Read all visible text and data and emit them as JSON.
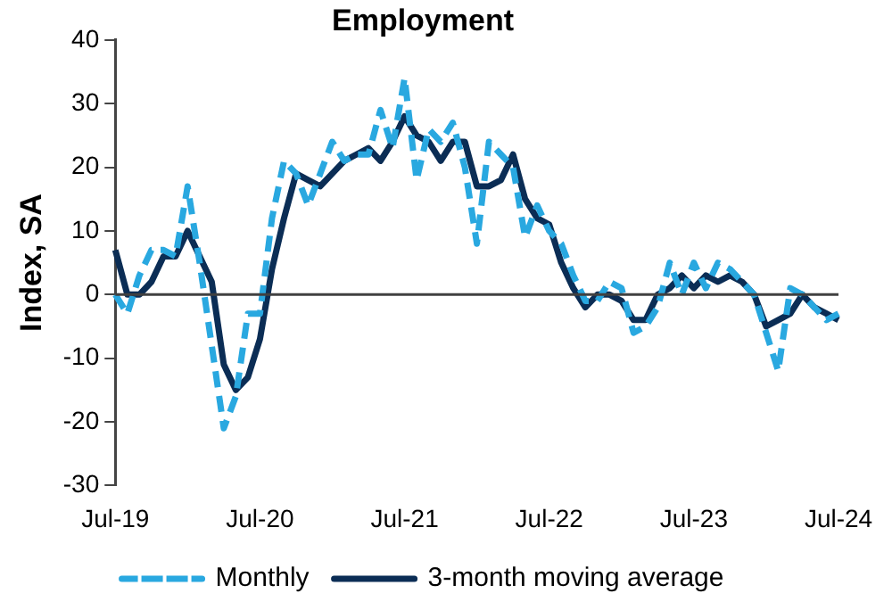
{
  "chart_data": {
    "type": "line",
    "title": "Employment",
    "ylabel": "Index, SA",
    "categories": [
      "Jul-19",
      null,
      null,
      null,
      null,
      null,
      null,
      null,
      null,
      null,
      null,
      null,
      "Jul-20",
      null,
      null,
      null,
      null,
      null,
      null,
      null,
      null,
      null,
      null,
      null,
      "Jul-21",
      null,
      null,
      null,
      null,
      null,
      null,
      null,
      null,
      null,
      null,
      null,
      "Jul-22",
      null,
      null,
      null,
      null,
      null,
      null,
      null,
      null,
      null,
      null,
      null,
      "Jul-23",
      null,
      null,
      null,
      null,
      null,
      null,
      null,
      null,
      null,
      null,
      null,
      "Jul-24"
    ],
    "series": [
      {
        "name": "Monthly",
        "color": "#29a8e0",
        "line_style": "dashed",
        "values": [
          0,
          -3,
          3,
          7,
          7,
          6,
          17,
          5,
          -8,
          -21,
          -16,
          -3,
          -3,
          12,
          21,
          19,
          14,
          19,
          24,
          21,
          22,
          22,
          29,
          23,
          34,
          18,
          26,
          24,
          27,
          20,
          8,
          24,
          22,
          20,
          9,
          14,
          10,
          8,
          3,
          -1,
          -1,
          2,
          1,
          -6,
          -5,
          -2,
          5,
          0,
          5,
          1,
          5,
          4,
          2,
          0,
          -6,
          -12,
          1,
          0,
          -2,
          -4,
          -3
        ]
      },
      {
        "name": "3-month moving average",
        "color": "#0b2d55",
        "line_style": "solid",
        "values": [
          7,
          0,
          0,
          2,
          6,
          6,
          10,
          6,
          2,
          -11,
          -15,
          -13,
          -7,
          4,
          12,
          19,
          18,
          17,
          19,
          21,
          22,
          23,
          21,
          24,
          28,
          25,
          24,
          21,
          24,
          24,
          17,
          17,
          18,
          22,
          15,
          12,
          11,
          5,
          1,
          -2,
          0,
          0,
          -1,
          -4,
          -4,
          0,
          1,
          3,
          1,
          3,
          2,
          3,
          2,
          0,
          -5,
          -4,
          -3,
          0,
          -2,
          -3,
          -4
        ]
      }
    ],
    "ylim": [
      -30,
      40
    ],
    "yticks": [
      -30,
      -20,
      -10,
      0,
      10,
      20,
      30,
      40
    ],
    "ref_lines": [
      {
        "axis": "y",
        "value": 0,
        "color": "#404040"
      }
    ],
    "grid": false,
    "legend": "bottom",
    "marker": "none"
  }
}
